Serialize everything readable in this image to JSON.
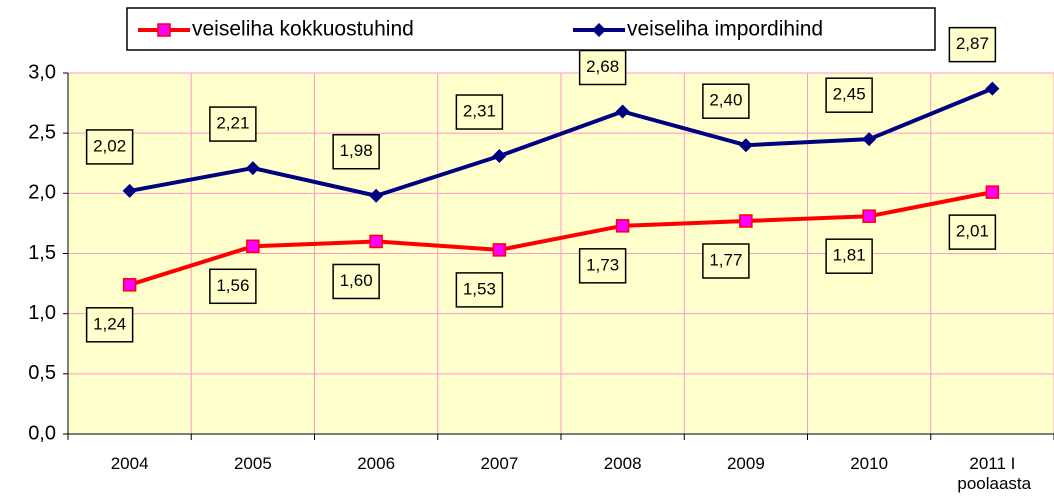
{
  "chart_data": {
    "type": "line",
    "categories": [
      "2004",
      "2005",
      "2006",
      "2007",
      "2008",
      "2009",
      "2010",
      "2011 I poolaasta"
    ],
    "series": [
      {
        "name": "veiseliha impordihind",
        "color": "#000080",
        "marker": "diamond",
        "values": [
          2.02,
          2.21,
          1.98,
          2.31,
          2.68,
          2.4,
          2.45,
          2.87
        ],
        "value_labels": [
          "2,02",
          "2,21",
          "1,98",
          "2,31",
          "2,68",
          "2,40",
          "2,45",
          "2,87"
        ]
      },
      {
        "name": "veiseliha kokkuostuhind",
        "color": "#ff0000",
        "marker": "square",
        "values": [
          1.24,
          1.56,
          1.6,
          1.53,
          1.73,
          1.77,
          1.81,
          2.01
        ],
        "value_labels": [
          "1,24",
          "1,56",
          "1,60",
          "1,53",
          "1,73",
          "1,77",
          "1,81",
          "2,01"
        ]
      }
    ],
    "ylim": [
      0,
      3
    ],
    "yticks": [
      {
        "value": 0,
        "label": "0,0"
      },
      {
        "value": 0.5,
        "label": "0,5"
      },
      {
        "value": 1,
        "label": "1,0"
      },
      {
        "value": 1.5,
        "label": "1,5"
      },
      {
        "value": 2,
        "label": "2,0"
      },
      {
        "value": 2.5,
        "label": "2,5"
      },
      {
        "value": 3,
        "label": "3,0"
      }
    ],
    "grid": true,
    "legend": "top"
  }
}
